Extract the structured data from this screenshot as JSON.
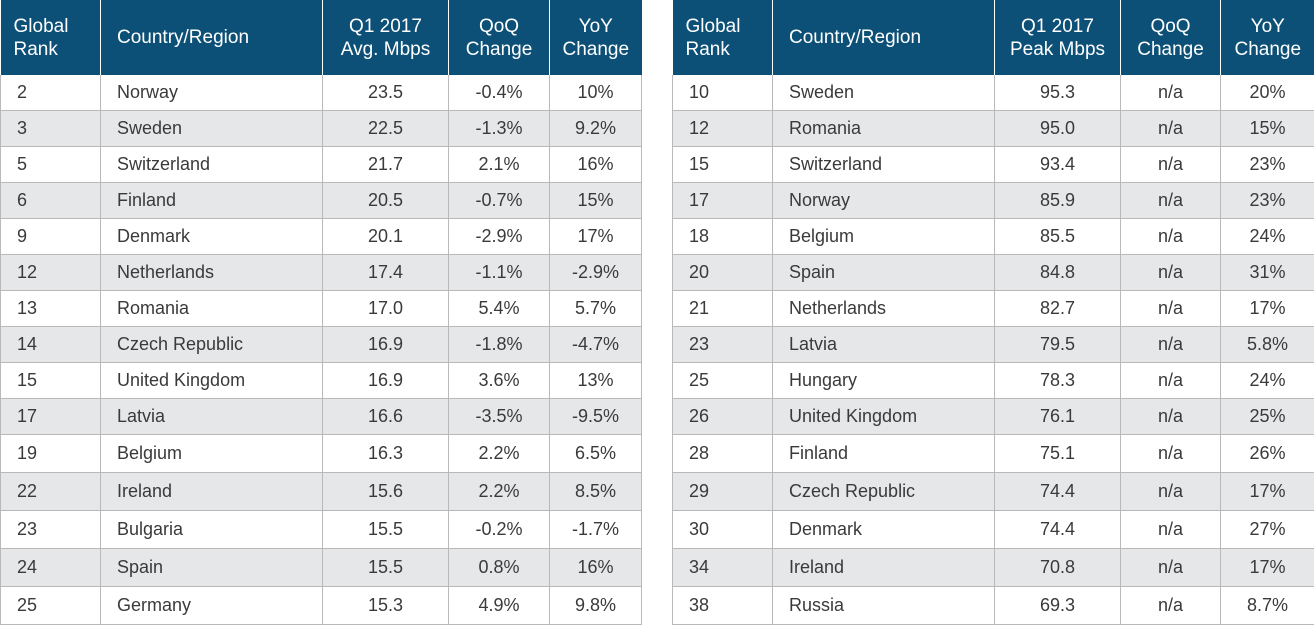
{
  "avg_table": {
    "headers": {
      "rank": [
        "Global",
        "Rank"
      ],
      "country": "Country/Region",
      "metric": [
        "Q1 2017",
        "Avg. Mbps"
      ],
      "qoq": [
        "QoQ",
        "Change"
      ],
      "yoy": [
        "YoY",
        "Change"
      ]
    },
    "rows": [
      {
        "rank": "2",
        "country": "Norway",
        "value": "23.5",
        "qoq": "-0.4%",
        "yoy": "10%"
      },
      {
        "rank": "3",
        "country": "Sweden",
        "value": "22.5",
        "qoq": "-1.3%",
        "yoy": "9.2%"
      },
      {
        "rank": "5",
        "country": "Switzerland",
        "value": "21.7",
        "qoq": "2.1%",
        "yoy": "16%"
      },
      {
        "rank": "6",
        "country": "Finland",
        "value": "20.5",
        "qoq": "-0.7%",
        "yoy": "15%"
      },
      {
        "rank": "9",
        "country": "Denmark",
        "value": "20.1",
        "qoq": "-2.9%",
        "yoy": "17%"
      },
      {
        "rank": "12",
        "country": "Netherlands",
        "value": "17.4",
        "qoq": "-1.1%",
        "yoy": "-2.9%"
      },
      {
        "rank": "13",
        "country": "Romania",
        "value": "17.0",
        "qoq": "5.4%",
        "yoy": "5.7%"
      },
      {
        "rank": "14",
        "country": "Czech Republic",
        "value": "16.9",
        "qoq": "-1.8%",
        "yoy": "-4.7%"
      },
      {
        "rank": "15",
        "country": "United Kingdom",
        "value": "16.9",
        "qoq": "3.6%",
        "yoy": "13%"
      },
      {
        "rank": "17",
        "country": "Latvia",
        "value": "16.6",
        "qoq": "-3.5%",
        "yoy": "-9.5%"
      },
      {
        "rank": "19",
        "country": "Belgium",
        "value": "16.3",
        "qoq": "2.2%",
        "yoy": "6.5%"
      },
      {
        "rank": "22",
        "country": "Ireland",
        "value": "15.6",
        "qoq": "2.2%",
        "yoy": "8.5%"
      },
      {
        "rank": "23",
        "country": "Bulgaria",
        "value": "15.5",
        "qoq": "-0.2%",
        "yoy": "-1.7%"
      },
      {
        "rank": "24",
        "country": "Spain",
        "value": "15.5",
        "qoq": "0.8%",
        "yoy": "16%"
      },
      {
        "rank": "25",
        "country": "Germany",
        "value": "15.3",
        "qoq": "4.9%",
        "yoy": "9.8%"
      }
    ]
  },
  "peak_table": {
    "headers": {
      "rank": [
        "Global",
        "Rank"
      ],
      "country": "Country/Region",
      "metric": [
        "Q1 2017",
        "Peak Mbps"
      ],
      "qoq": [
        "QoQ",
        "Change"
      ],
      "yoy": [
        "YoY",
        "Change"
      ]
    },
    "rows": [
      {
        "rank": "10",
        "country": "Sweden",
        "value": "95.3",
        "qoq": "n/a",
        "yoy": "20%"
      },
      {
        "rank": "12",
        "country": "Romania",
        "value": "95.0",
        "qoq": "n/a",
        "yoy": "15%"
      },
      {
        "rank": "15",
        "country": "Switzerland",
        "value": "93.4",
        "qoq": "n/a",
        "yoy": "23%"
      },
      {
        "rank": "17",
        "country": "Norway",
        "value": "85.9",
        "qoq": "n/a",
        "yoy": "23%"
      },
      {
        "rank": "18",
        "country": "Belgium",
        "value": "85.5",
        "qoq": "n/a",
        "yoy": "24%"
      },
      {
        "rank": "20",
        "country": "Spain",
        "value": "84.8",
        "qoq": "n/a",
        "yoy": "31%"
      },
      {
        "rank": "21",
        "country": "Netherlands",
        "value": "82.7",
        "qoq": "n/a",
        "yoy": "17%"
      },
      {
        "rank": "23",
        "country": "Latvia",
        "value": "79.5",
        "qoq": "n/a",
        "yoy": "5.8%"
      },
      {
        "rank": "25",
        "country": "Hungary",
        "value": "78.3",
        "qoq": "n/a",
        "yoy": "24%"
      },
      {
        "rank": "26",
        "country": "United Kingdom",
        "value": "76.1",
        "qoq": "n/a",
        "yoy": "25%"
      },
      {
        "rank": "28",
        "country": "Finland",
        "value": "75.1",
        "qoq": "n/a",
        "yoy": "26%"
      },
      {
        "rank": "29",
        "country": "Czech Republic",
        "value": "74.4",
        "qoq": "n/a",
        "yoy": "17%"
      },
      {
        "rank": "30",
        "country": "Denmark",
        "value": "74.4",
        "qoq": "n/a",
        "yoy": "27%"
      },
      {
        "rank": "34",
        "country": "Ireland",
        "value": "70.8",
        "qoq": "n/a",
        "yoy": "17%"
      },
      {
        "rank": "38",
        "country": "Russia",
        "value": "69.3",
        "qoq": "n/a",
        "yoy": "8.7%"
      }
    ]
  }
}
